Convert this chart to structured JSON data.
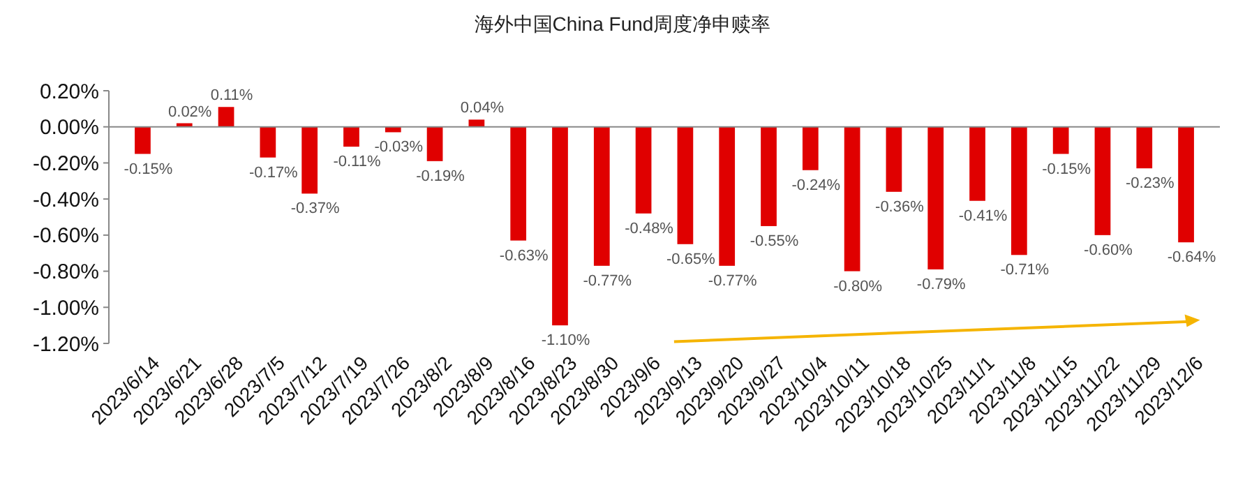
{
  "chart_data": {
    "type": "bar",
    "title": "海外中国China Fund周度净申赎率",
    "categories": [
      "2023/6/14",
      "2023/6/21",
      "2023/6/28",
      "2023/7/5",
      "2023/7/12",
      "2023/7/19",
      "2023/7/26",
      "2023/8/2",
      "2023/8/9",
      "2023/8/16",
      "2023/8/23",
      "2023/8/30",
      "2023/9/6",
      "2023/9/13",
      "2023/9/20",
      "2023/9/27",
      "2023/10/4",
      "2023/10/11",
      "2023/10/18",
      "2023/10/25",
      "2023/11/1",
      "2023/11/8",
      "2023/11/15",
      "2023/11/22",
      "2023/11/29",
      "2023/12/6"
    ],
    "values": [
      -0.15,
      0.02,
      0.11,
      -0.17,
      -0.37,
      -0.11,
      -0.03,
      -0.19,
      0.04,
      -0.63,
      -1.1,
      -0.77,
      -0.48,
      -0.65,
      -0.77,
      -0.55,
      -0.24,
      -0.8,
      -0.36,
      -0.79,
      -0.41,
      -0.71,
      -0.15,
      -0.6,
      -0.23,
      -0.64
    ],
    "value_labels": [
      "-0.15%",
      "0.02%",
      "0.11%",
      "-0.17%",
      "-0.37%",
      "-0.11%",
      "-0.03%",
      "-0.19%",
      "0.04%",
      "-0.63%",
      "-1.10%",
      "-0.77%",
      "-0.48%",
      "-0.65%",
      "-0.77%",
      "-0.55%",
      "-0.24%",
      "-0.80%",
      "-0.36%",
      "-0.79%",
      "-0.41%",
      "-0.71%",
      "-0.15%",
      "-0.60%",
      "-0.23%",
      "-0.64%"
    ],
    "color": "#e00000",
    "ylim": [
      -1.2,
      0.2
    ],
    "yticks": [
      {
        "value": 0.2,
        "label": "0.20%"
      },
      {
        "value": 0,
        "label": "0.00%"
      },
      {
        "value": -0.2,
        "label": "-0.20%"
      },
      {
        "value": -0.4,
        "label": "-0.40%"
      },
      {
        "value": -0.6,
        "label": "-0.60%"
      },
      {
        "value": -0.8,
        "label": "-0.80%"
      },
      {
        "value": -1.0,
        "label": "-1.00%"
      },
      {
        "value": -1.2,
        "label": "-1.20%"
      }
    ],
    "legend": false
  }
}
